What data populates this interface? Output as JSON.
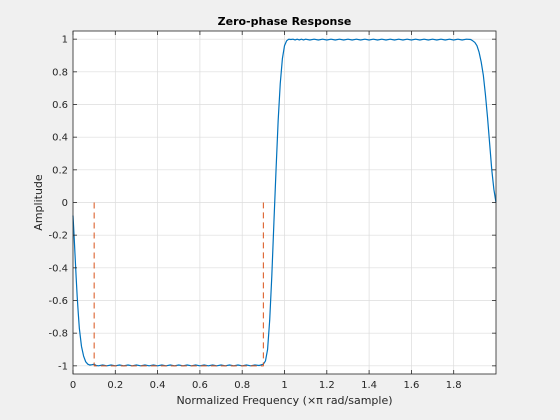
{
  "chart_data": {
    "type": "line",
    "title": "Zero-phase Response",
    "xlabel_main": "Normalized Frequency (",
    "xlabel_symbol": "×π",
    "xlabel_unit": " rad/sample)",
    "ylabel": "Amplitude",
    "xlim": [
      0,
      2
    ],
    "ylim": [
      -1.05,
      1.05
    ],
    "x_ticks": [
      0,
      0.2,
      0.4,
      0.6,
      0.8,
      1,
      1.2,
      1.4,
      1.6,
      1.8
    ],
    "x_tick_labels": [
      "0",
      "0.2",
      "0.4",
      "0.6",
      "0.8",
      "1",
      "1.2",
      "1.4",
      "1.6",
      "1.8"
    ],
    "y_ticks": [
      -1,
      -0.8,
      -0.6,
      -0.4,
      -0.2,
      0,
      0.2,
      0.4,
      0.6,
      0.8,
      1
    ],
    "y_tick_labels": [
      "-1",
      "-0.8",
      "-0.6",
      "-0.4",
      "-0.2",
      "0",
      "0.2",
      "0.4",
      "0.6",
      "0.8",
      "1"
    ],
    "grid": true,
    "colors": {
      "response": "#0072bd",
      "mask": "#d95319",
      "grid": "#dcdcdc",
      "axes": "#262626",
      "plot_bg": "#ffffff"
    },
    "series": [
      {
        "style": "solid",
        "color": "#0072bd",
        "x": [
          0,
          0.005,
          0.01,
          0.015,
          0.02,
          0.025,
          0.03,
          0.04,
          0.05,
          0.06,
          0.07,
          0.08,
          0.09,
          0.1,
          0.11,
          0.12,
          0.14,
          0.16,
          0.18,
          0.2,
          0.22,
          0.24,
          0.26,
          0.28,
          0.3,
          0.32,
          0.34,
          0.36,
          0.38,
          0.4,
          0.42,
          0.44,
          0.46,
          0.48,
          0.5,
          0.52,
          0.54,
          0.56,
          0.58,
          0.6,
          0.62,
          0.64,
          0.66,
          0.68,
          0.7,
          0.72,
          0.74,
          0.76,
          0.78,
          0.8,
          0.82,
          0.84,
          0.86,
          0.88,
          0.9,
          0.91,
          0.92,
          0.93,
          0.94,
          0.95,
          0.96,
          0.97,
          0.98,
          0.99,
          1,
          1.01,
          1.02,
          1.03,
          1.04,
          1.05,
          1.06,
          1.07,
          1.08,
          1.09,
          1.1,
          1.12,
          1.14,
          1.16,
          1.18,
          1.2,
          1.22,
          1.24,
          1.26,
          1.28,
          1.3,
          1.32,
          1.34,
          1.36,
          1.38,
          1.4,
          1.42,
          1.44,
          1.46,
          1.48,
          1.5,
          1.52,
          1.54,
          1.56,
          1.58,
          1.6,
          1.62,
          1.64,
          1.66,
          1.68,
          1.7,
          1.72,
          1.74,
          1.76,
          1.78,
          1.8,
          1.82,
          1.84,
          1.86,
          1.88,
          1.89,
          1.9,
          1.91,
          1.92,
          1.93,
          1.94,
          1.95,
          1.96,
          1.97,
          1.98,
          1.99,
          2
        ],
        "y": [
          -0.08,
          -0.2,
          -0.33,
          -0.46,
          -0.58,
          -0.68,
          -0.77,
          -0.88,
          -0.94,
          -0.975,
          -0.99,
          -0.995,
          -0.993,
          -0.99,
          -0.998,
          -1.0,
          -0.995,
          -1.0,
          -0.995,
          -1.0,
          -0.995,
          -1.0,
          -0.995,
          -1.0,
          -0.995,
          -1.0,
          -0.995,
          -1.0,
          -0.995,
          -1.0,
          -0.995,
          -1.0,
          -0.995,
          -1.0,
          -0.995,
          -1.0,
          -0.995,
          -1.0,
          -0.995,
          -1.0,
          -0.995,
          -1.0,
          -0.995,
          -1.0,
          -0.995,
          -1.0,
          -0.995,
          -1.0,
          -0.995,
          -1.0,
          -0.995,
          -1.0,
          -0.995,
          -0.998,
          -0.99,
          -0.97,
          -0.9,
          -0.72,
          -0.45,
          -0.12,
          0.2,
          0.5,
          0.73,
          0.88,
          0.96,
          0.99,
          1.0,
          0.998,
          1.0,
          0.995,
          1.0,
          0.995,
          1.0,
          0.995,
          1.0,
          0.995,
          1.0,
          0.995,
          1.0,
          0.995,
          1.0,
          0.995,
          1.0,
          0.995,
          1.0,
          0.995,
          1.0,
          0.995,
          1.0,
          0.995,
          1.0,
          0.995,
          1.0,
          0.995,
          1.0,
          0.995,
          1.0,
          0.995,
          1.0,
          0.995,
          1.0,
          0.995,
          1.0,
          0.995,
          1.0,
          0.995,
          1.0,
          0.995,
          1.0,
          0.995,
          1.0,
          0.995,
          1.0,
          0.998,
          0.99,
          0.98,
          0.96,
          0.92,
          0.86,
          0.78,
          0.66,
          0.52,
          0.36,
          0.2,
          0.08,
          0
        ]
      },
      {
        "style": "dashed",
        "color": "#d95319",
        "x": [
          0.1,
          0.1,
          0.9,
          0.9
        ],
        "y": [
          0,
          -1,
          -1,
          0
        ]
      }
    ]
  }
}
